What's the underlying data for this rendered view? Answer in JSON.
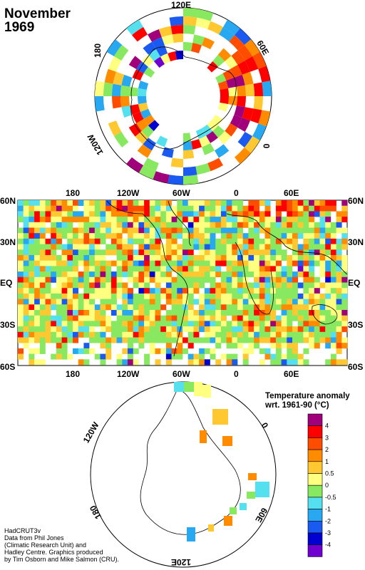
{
  "title": {
    "month": "November",
    "year": "1969"
  },
  "north_map": {
    "labels": [
      "120E",
      "60E",
      "0",
      "120W",
      "180"
    ]
  },
  "world_map": {
    "top_lon_labels": [
      "180",
      "120W",
      "60W",
      "0",
      "60E"
    ],
    "bottom_lon_labels": [
      "180",
      "120W",
      "60W",
      "0",
      "60E"
    ],
    "left_lat_labels": [
      "60N",
      "30N",
      "EQ",
      "30S",
      "60S"
    ],
    "right_lat_labels": [
      "60N",
      "30N",
      "EQ",
      "30S",
      "60S"
    ]
  },
  "south_map": {
    "labels": [
      "120W",
      "0",
      "60E",
      "120E",
      "180"
    ]
  },
  "legend": {
    "title_line1": "Temperature anomaly",
    "title_line2": "wrt. 1961-90  (°C)",
    "levels": [
      "4",
      "3",
      "2",
      "1",
      "0.5",
      "0",
      "-0.5",
      "-1",
      "-2",
      "-3",
      "-4"
    ],
    "colors": [
      "#a0007a",
      "#ff0000",
      "#ff4d00",
      "#ff8c00",
      "#ffc830",
      "#ffff80",
      "#88e860",
      "#55e0f0",
      "#28a8f0",
      "#1a5af0",
      "#0000d0",
      "#7000d0"
    ]
  },
  "credit": "HadCRUT3v\nData from Phil Jones\n(Climatic Research Unit) and\nHadley Centre.  Graphics produced\nby Tim Osborn and Mike Salmon (CRU)."
}
